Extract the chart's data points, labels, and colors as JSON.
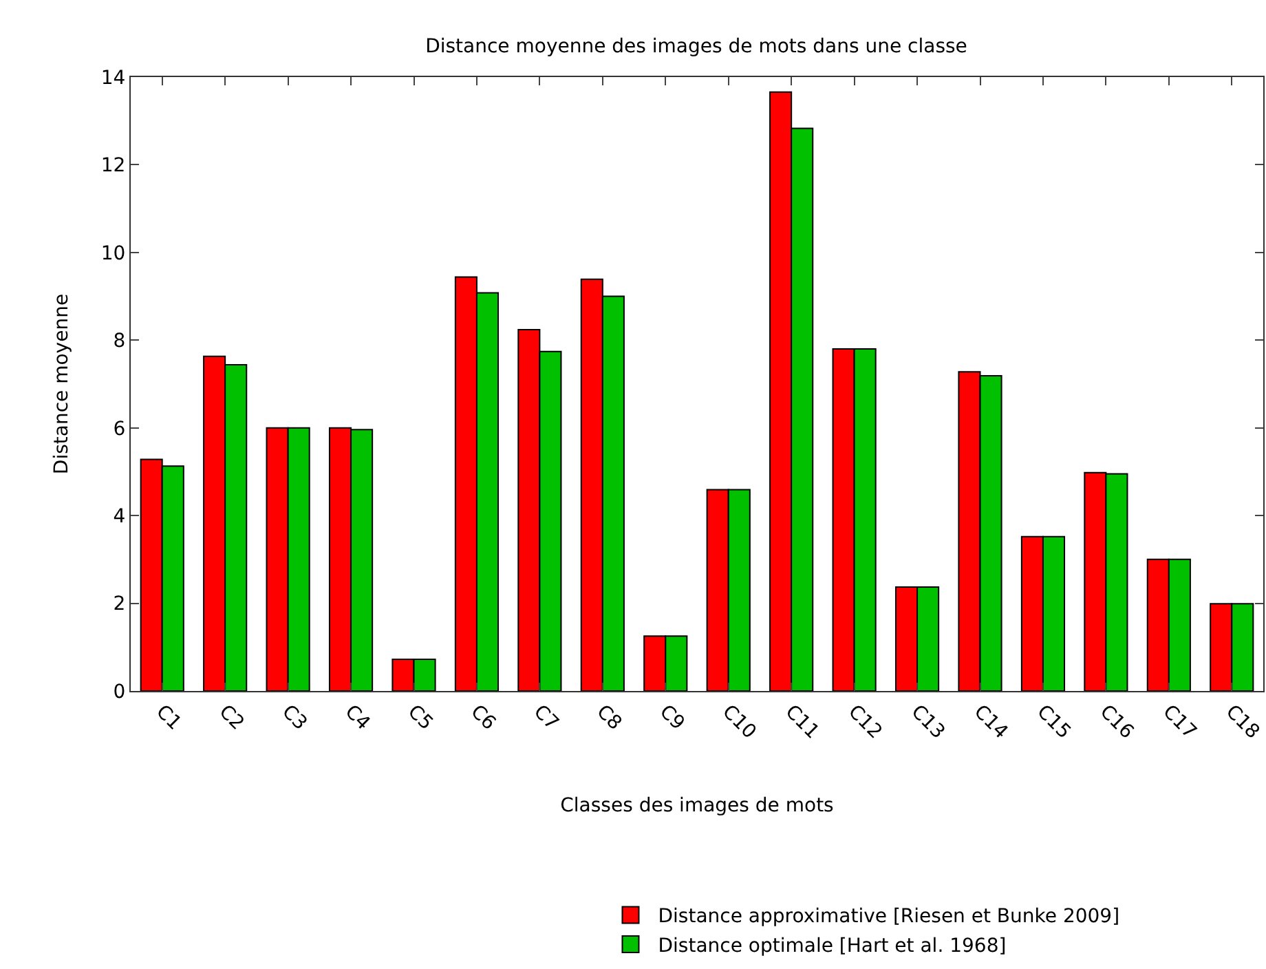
{
  "chart_data": {
    "type": "bar",
    "title": "Distance moyenne des images de mots dans une classe",
    "xlabel": "Classes des images de mots",
    "ylabel": "Distance moyenne",
    "categories": [
      "C1",
      "C2",
      "C3",
      "C4",
      "C5",
      "C6",
      "C7",
      "C8",
      "C9",
      "C10",
      "C11",
      "C12",
      "C13",
      "C14",
      "C15",
      "C16",
      "C17",
      "C18"
    ],
    "series": [
      {
        "name": "Distance approximative [Riesen et Bunke 2009]",
        "color": "#ff0000",
        "values": [
          5.28,
          7.63,
          6.0,
          6.0,
          0.72,
          9.44,
          8.24,
          9.39,
          1.25,
          4.59,
          13.66,
          7.8,
          2.37,
          7.28,
          3.52,
          4.98,
          3.0,
          1.99
        ]
      },
      {
        "name": "Distance optimale [Hart et al. 1968]",
        "color": "#00c000",
        "values": [
          5.13,
          7.44,
          6.0,
          5.96,
          0.72,
          9.08,
          7.74,
          9.0,
          1.25,
          4.59,
          12.83,
          7.8,
          2.37,
          7.19,
          3.52,
          4.95,
          3.0,
          1.99
        ]
      }
    ],
    "ylim": [
      0,
      14
    ],
    "yticks": [
      0,
      2,
      4,
      6,
      8,
      10,
      12,
      14
    ],
    "grid": false,
    "legend": "bottom right"
  }
}
